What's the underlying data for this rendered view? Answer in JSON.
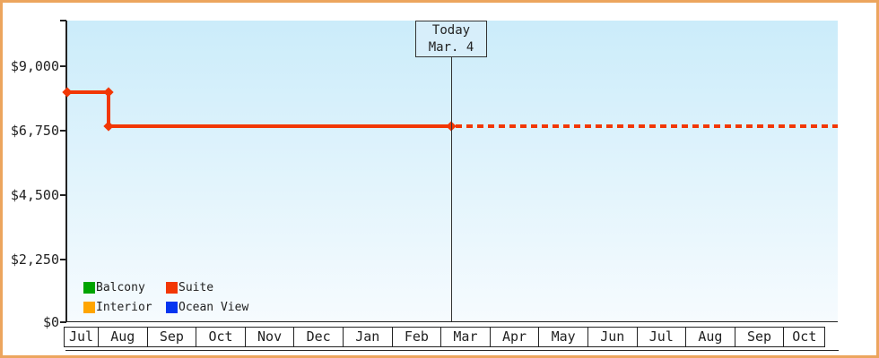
{
  "frame_color": "#ECA55E",
  "chart_data": {
    "type": "line",
    "title": "",
    "y_axis": {
      "tick_labels": [
        "$0",
        "$2,250",
        "$4,500",
        "$6,750",
        "$9,000"
      ],
      "tick_values": [
        0,
        2250,
        4500,
        6750,
        9000
      ],
      "range": [
        0,
        10500
      ]
    },
    "x_axis": {
      "month_labels": [
        "Jul",
        "Aug",
        "Sep",
        "Oct",
        "Nov",
        "Dec",
        "Jan",
        "Feb",
        "Mar",
        "Apr",
        "May",
        "Jun",
        "Jul",
        "Aug",
        "Sep",
        "Oct"
      ]
    },
    "series": [
      {
        "name": "Suite",
        "color": "#F23705",
        "points": [
          {
            "x_frac": 0.0,
            "value": 8100,
            "date": "mid-Jul"
          },
          {
            "x_frac": 0.0539,
            "value": 8100,
            "date": "early Aug"
          },
          {
            "x_frac": 0.0539,
            "value": 6900,
            "date": "early Aug"
          },
          {
            "x_frac": 0.4986,
            "value": 6900,
            "date": "Mar 4"
          }
        ],
        "projection": {
          "from_x_frac": 0.4986,
          "to_x_frac": 1.0,
          "value": 6900,
          "style": "dotted"
        }
      }
    ],
    "today_marker": {
      "line1": "Today",
      "line2": "Mar. 4",
      "x_frac": 0.4986
    },
    "legend": [
      {
        "label": "Balcony",
        "color": "#00A400"
      },
      {
        "label": "Suite",
        "color": "#F23705"
      },
      {
        "label": "Interior",
        "color": "#FFA500"
      },
      {
        "label": "Ocean View",
        "color": "#0535F0"
      }
    ],
    "grid": false,
    "legend_position": "bottom-left-inside"
  }
}
